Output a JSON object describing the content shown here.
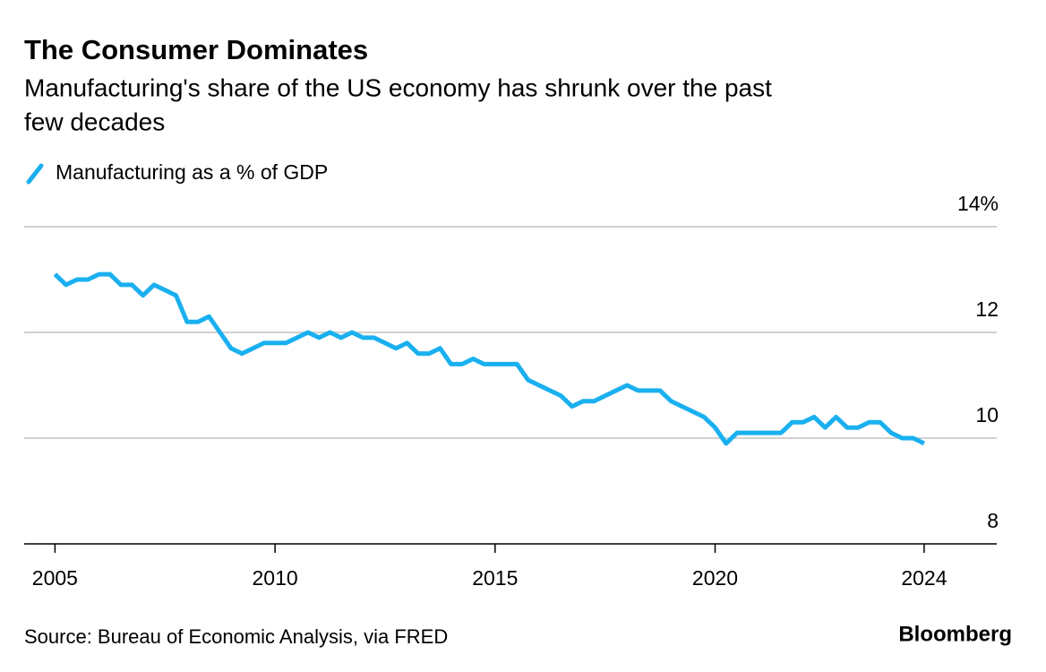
{
  "chart_data": {
    "type": "line",
    "title": "The Consumer Dominates",
    "subtitle": [
      "Manufacturing's share of the US economy has shrunk over the past",
      "few decades"
    ],
    "source": "Source: Bureau of Economic Analysis, via FRED",
    "brand": "Bloomberg",
    "x": [
      2005,
      2005.25,
      2005.5,
      2005.75,
      2006,
      2006.25,
      2006.5,
      2006.75,
      2007,
      2007.25,
      2007.5,
      2007.75,
      2008,
      2008.25,
      2008.5,
      2008.75,
      2009,
      2009.25,
      2009.5,
      2009.75,
      2010,
      2010.25,
      2010.5,
      2010.75,
      2011,
      2011.25,
      2011.5,
      2011.75,
      2012,
      2012.25,
      2012.5,
      2012.75,
      2013,
      2013.25,
      2013.5,
      2013.75,
      2014,
      2014.25,
      2014.5,
      2014.75,
      2015,
      2015.25,
      2015.5,
      2015.75,
      2016,
      2016.25,
      2016.5,
      2016.75,
      2017,
      2017.25,
      2017.5,
      2017.75,
      2018,
      2018.25,
      2018.5,
      2018.75,
      2019,
      2019.25,
      2019.5,
      2019.75,
      2020,
      2020.25,
      2020.5,
      2020.75,
      2021,
      2021.25,
      2021.5,
      2021.75,
      2022,
      2022.25,
      2022.5,
      2022.75,
      2023,
      2023.25,
      2023.5,
      2023.75,
      2024,
      2024.25,
      2024.5,
      2024.75
    ],
    "series": [
      {
        "name": "Manufacturing as a % of GDP",
        "color": "#1ab0f0",
        "values": [
          13.1,
          12.9,
          13.0,
          13.0,
          13.1,
          13.1,
          12.9,
          12.9,
          12.7,
          12.9,
          12.8,
          12.7,
          12.2,
          12.2,
          12.3,
          12.0,
          11.7,
          11.6,
          11.7,
          11.8,
          11.8,
          11.8,
          11.9,
          12.0,
          11.9,
          12.0,
          11.9,
          12.0,
          11.9,
          11.9,
          11.8,
          11.7,
          11.8,
          11.6,
          11.6,
          11.7,
          11.4,
          11.4,
          11.5,
          11.4,
          11.4,
          11.4,
          11.4,
          11.1,
          11.0,
          10.9,
          10.8,
          10.6,
          10.7,
          10.7,
          10.8,
          10.9,
          11.0,
          10.9,
          10.9,
          10.9,
          10.7,
          10.6,
          10.5,
          10.4,
          10.2,
          9.9,
          10.1,
          10.1,
          10.1,
          10.1,
          10.1,
          10.3,
          10.3,
          10.4,
          10.2,
          10.4,
          10.2,
          10.2,
          10.3,
          10.3,
          10.1,
          10.0,
          10.0,
          9.9
        ]
      }
    ],
    "xlim": [
      2004.3,
      2026.4
    ],
    "xticks": [
      2005,
      2010,
      2015,
      2020,
      {
        "value": 2024.75,
        "label": "2024"
      }
    ],
    "ylim": [
      8,
      14
    ],
    "yticks": [
      8,
      10,
      12,
      {
        "value": 14,
        "label": "14%"
      }
    ],
    "grid": true
  }
}
